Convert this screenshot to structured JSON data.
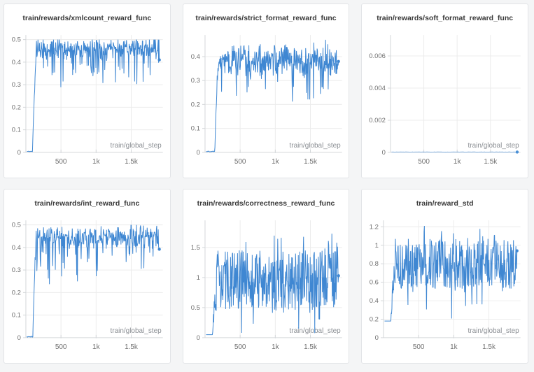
{
  "theme": {
    "page_bg": "#f4f5f6",
    "card_bg": "#ffffff",
    "card_border": "#e2e4e7",
    "title_color": "#3a3a3a",
    "line_color": "#3f87d2",
    "grid_color": "#ececec",
    "axis_color": "#d4d7da",
    "tick_label_color": "#6f6f6f",
    "xlabel_color": "#8b8f94"
  },
  "chart_data": [
    {
      "type": "line",
      "title": "train/rewards/xmlcount_reward_func",
      "xlabel": "train/global_step",
      "xlim": [
        0,
        1950
      ],
      "x_ticks": [
        {
          "v": 500,
          "label": "500"
        },
        {
          "v": 1000,
          "label": "1k"
        },
        {
          "v": 1500,
          "label": "1.5k"
        }
      ],
      "ylim": [
        0,
        0.52
      ],
      "y_ticks": [
        {
          "v": 0,
          "label": "0"
        },
        {
          "v": 0.1,
          "label": "0.1"
        },
        {
          "v": 0.2,
          "label": "0.2"
        },
        {
          "v": 0.3,
          "label": "0.3"
        },
        {
          "v": 0.4,
          "label": "0.4"
        },
        {
          "v": 0.5,
          "label": "0.5"
        }
      ],
      "grid": true,
      "legend": "none",
      "series": [
        {
          "name": "xmlcount_reward",
          "pattern": "flat-then-noisy-plateau",
          "x_start": 15,
          "x_end": 1900,
          "flat_until": 95,
          "flat_value": 0.004,
          "rise_end": 150,
          "plateau_mean": 0.462,
          "noise": "tri",
          "noise_amp": 0.04,
          "p_dip": 0.18,
          "dip_max": 0.14,
          "p_peak": 0,
          "peak_extra": 0,
          "clip": [
            0,
            0.5
          ],
          "final_value": 0.41,
          "n_points": 360,
          "seed": 11
        }
      ]
    },
    {
      "type": "line",
      "title": "train/rewards/strict_format_reward_func",
      "xlabel": "train/global_step",
      "xlim": [
        0,
        1950
      ],
      "x_ticks": [
        {
          "v": 500,
          "label": "500"
        },
        {
          "v": 1000,
          "label": "1k"
        },
        {
          "v": 1500,
          "label": "1.5k"
        }
      ],
      "ylim": [
        0,
        0.49
      ],
      "y_ticks": [
        {
          "v": 0,
          "label": "0"
        },
        {
          "v": 0.1,
          "label": "0.1"
        },
        {
          "v": 0.2,
          "label": "0.2"
        },
        {
          "v": 0.3,
          "label": "0.3"
        },
        {
          "v": 0.4,
          "label": "0.4"
        }
      ],
      "grid": true,
      "legend": "none",
      "series": [
        {
          "name": "strict_format_reward",
          "pattern": "flat-then-noisy-plateau",
          "x_start": 15,
          "x_end": 1900,
          "flat_until": 140,
          "flat_value": 0.004,
          "rise_end": 185,
          "plateau_mean": 0.385,
          "noise": "tri",
          "noise_amp": 0.05,
          "p_dip": 0.2,
          "dip_max": 0.16,
          "p_peak": 0.12,
          "peak_extra": 0.035,
          "clip": [
            0,
            0.485
          ],
          "final_value": 0.38,
          "n_points": 360,
          "seed": 22
        }
      ]
    },
    {
      "type": "line",
      "title": "train/rewards/soft_format_reward_func",
      "xlabel": "train/global_step",
      "xlim": [
        0,
        1950
      ],
      "x_ticks": [
        {
          "v": 500,
          "label": "500"
        },
        {
          "v": 1000,
          "label": "1k"
        },
        {
          "v": 1500,
          "label": "1.5k"
        }
      ],
      "ylim": [
        0,
        0.0073
      ],
      "y_ticks": [
        {
          "v": 0,
          "label": "0"
        },
        {
          "v": 0.002,
          "label": "0.002"
        },
        {
          "v": 0.004,
          "label": "0.004"
        },
        {
          "v": 0.006,
          "label": "0.006"
        }
      ],
      "grid": true,
      "legend": "none",
      "line_color": "#8ab6e4",
      "dot_color": "#4a90d6",
      "series": [
        {
          "name": "soft_format_reward",
          "pattern": "constant-zero",
          "x_start": 15,
          "x_end": 1900,
          "flat_until": 1900,
          "flat_value": 2e-05,
          "rise_end": 1900,
          "plateau_mean": 2e-05,
          "noise": "uniform",
          "noise_amp": 0,
          "p_dip": 0,
          "dip_max": 0,
          "p_peak": 0,
          "peak_extra": 0,
          "clip": [
            0,
            0.0073
          ],
          "final_value": 2e-05,
          "n_points": 120,
          "seed": 33
        }
      ]
    },
    {
      "type": "line",
      "title": "train/rewards/int_reward_func",
      "xlabel": "train/global_step",
      "xlim": [
        0,
        1950
      ],
      "x_ticks": [
        {
          "v": 500,
          "label": "500"
        },
        {
          "v": 1000,
          "label": "1k"
        },
        {
          "v": 1500,
          "label": "1.5k"
        }
      ],
      "ylim": [
        0,
        0.52
      ],
      "y_ticks": [
        {
          "v": 0,
          "label": "0"
        },
        {
          "v": 0.1,
          "label": "0.1"
        },
        {
          "v": 0.2,
          "label": "0.2"
        },
        {
          "v": 0.3,
          "label": "0.3"
        },
        {
          "v": 0.4,
          "label": "0.4"
        },
        {
          "v": 0.5,
          "label": "0.5"
        }
      ],
      "grid": true,
      "legend": "none",
      "series": [
        {
          "name": "int_reward",
          "pattern": "flat-then-noisy-plateau",
          "x_start": 15,
          "x_end": 1900,
          "flat_until": 100,
          "flat_value": 0.004,
          "rise_end": 145,
          "plateau_mean": 0.448,
          "noise": "tri",
          "noise_amp": 0.045,
          "p_dip": 0.16,
          "dip_max": 0.16,
          "p_peak": 0,
          "peak_extra": 0,
          "clip": [
            0,
            0.5
          ],
          "final_value": 0.392,
          "n_points": 360,
          "seed": 44
        }
      ]
    },
    {
      "type": "line",
      "title": "train/rewards/correctness_reward_func",
      "xlabel": "train/global_step",
      "xlim": [
        0,
        1950
      ],
      "x_ticks": [
        {
          "v": 500,
          "label": "500"
        },
        {
          "v": 1000,
          "label": "1k"
        },
        {
          "v": 1500,
          "label": "1.5k"
        }
      ],
      "ylim": [
        0,
        1.95
      ],
      "y_ticks": [
        {
          "v": 0,
          "label": "0"
        },
        {
          "v": 0.5,
          "label": "0.5"
        },
        {
          "v": 1,
          "label": "1"
        },
        {
          "v": 1.5,
          "label": "1.5"
        }
      ],
      "grid": true,
      "legend": "none",
      "series": [
        {
          "name": "correctness_reward",
          "pattern": "flat-then-noisy-plateau",
          "x_start": 15,
          "x_end": 1900,
          "flat_until": 105,
          "flat_value": 0.004,
          "rise_end": 165,
          "plateau_mean": 0.95,
          "noise": "uniform",
          "noise_amp": 0.5,
          "p_dip": 0.12,
          "dip_max": 0.45,
          "p_peak": 0.12,
          "peak_extra": 0.45,
          "clip": [
            0.05,
            1.92
          ],
          "final_value": 1.03,
          "n_points": 380,
          "seed": 55
        }
      ]
    },
    {
      "type": "line",
      "title": "train/reward_std",
      "xlabel": "train/global_step",
      "xlim": [
        0,
        1950
      ],
      "x_ticks": [
        {
          "v": 500,
          "label": "500"
        },
        {
          "v": 1000,
          "label": "1k"
        },
        {
          "v": 1500,
          "label": "1.5k"
        }
      ],
      "ylim": [
        0,
        1.27
      ],
      "y_ticks": [
        {
          "v": 0,
          "label": "0"
        },
        {
          "v": 0.2,
          "label": "0.2"
        },
        {
          "v": 0.4,
          "label": "0.4"
        },
        {
          "v": 0.6,
          "label": "0.6"
        },
        {
          "v": 0.8,
          "label": "0.8"
        },
        {
          "v": 1,
          "label": "1"
        },
        {
          "v": 1.2,
          "label": "1.2"
        }
      ],
      "grid": true,
      "legend": "none",
      "series": [
        {
          "name": "reward_std",
          "pattern": "flat-then-noisy-plateau",
          "x_start": 15,
          "x_end": 1900,
          "flat_until": 100,
          "flat_value": 0.02,
          "rise_end": 150,
          "plateau_mean": 0.8,
          "noise": "uniform",
          "noise_amp": 0.27,
          "p_dip": 0.08,
          "dip_max": 0.35,
          "p_peak": 0.1,
          "peak_extra": 0.17,
          "clip": [
            0.18,
            1.21
          ],
          "final_value": 0.94,
          "n_points": 380,
          "seed": 66
        }
      ]
    }
  ]
}
